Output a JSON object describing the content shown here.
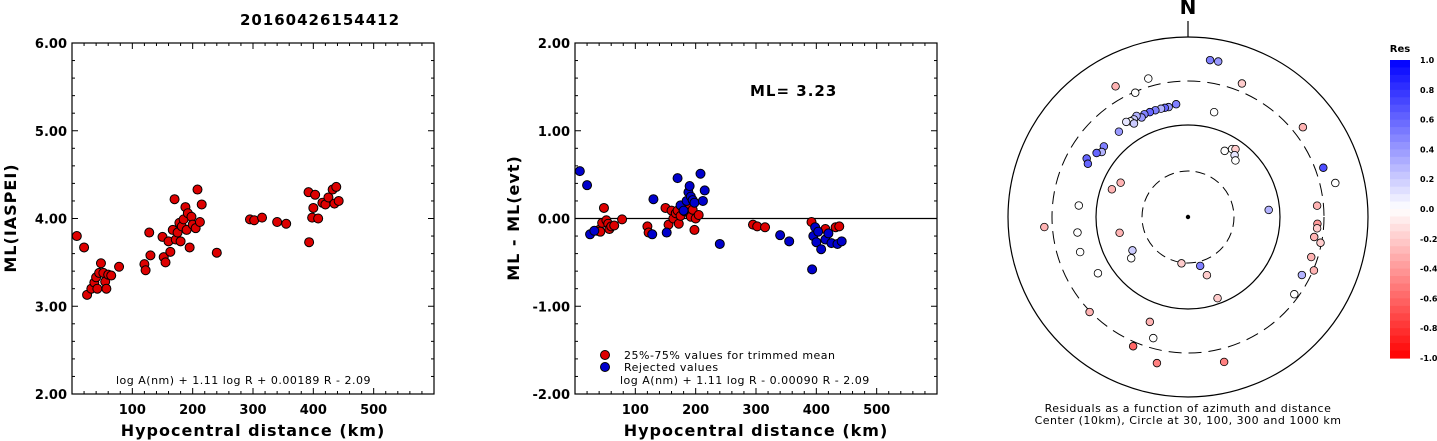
{
  "title": "20160426154412",
  "colors": {
    "accepted": "#dd0000",
    "rejected": "#0000cc",
    "outline": "#000000"
  },
  "chart_data": [
    {
      "id": "ml",
      "type": "scatter",
      "xlabel": "Hypocentral distance (km)",
      "ylabel": "ML(IASPEI)",
      "xlim": [
        0,
        600
      ],
      "ylim": [
        2.0,
        6.0
      ],
      "xticks": [
        "100",
        "200",
        "300",
        "400",
        "500"
      ],
      "yticks": [
        "2.00",
        "3.00",
        "4.00",
        "5.00",
        "6.00"
      ],
      "annotation": "log A(nm) + 1.11 log R + 0.00189 R - 2.09",
      "series": [
        {
          "color": "#dd0000",
          "points": [
            [
              8,
              3.8
            ],
            [
              20,
              3.67
            ],
            [
              25,
              3.13
            ],
            [
              32,
              3.2
            ],
            [
              37,
              3.27
            ],
            [
              40,
              3.33
            ],
            [
              42,
              3.2
            ],
            [
              45,
              3.38
            ],
            [
              48,
              3.49
            ],
            [
              52,
              3.38
            ],
            [
              55,
              3.28
            ],
            [
              57,
              3.2
            ],
            [
              60,
              3.36
            ],
            [
              65,
              3.35
            ],
            [
              78,
              3.45
            ],
            [
              120,
              3.48
            ],
            [
              122,
              3.41
            ],
            [
              128,
              3.84
            ],
            [
              130,
              3.58
            ],
            [
              150,
              3.79
            ],
            [
              152,
              3.56
            ],
            [
              155,
              3.5
            ],
            [
              160,
              3.74
            ],
            [
              163,
              3.62
            ],
            [
              167,
              3.87
            ],
            [
              170,
              4.22
            ],
            [
              172,
              3.76
            ],
            [
              175,
              3.84
            ],
            [
              178,
              3.95
            ],
            [
              180,
              3.74
            ],
            [
              182,
              3.91
            ],
            [
              185,
              3.99
            ],
            [
              188,
              4.13
            ],
            [
              190,
              3.87
            ],
            [
              192,
              4.06
            ],
            [
              195,
              3.67
            ],
            [
              198,
              4.02
            ],
            [
              200,
              3.93
            ],
            [
              205,
              3.89
            ],
            [
              208,
              4.33
            ],
            [
              212,
              3.96
            ],
            [
              215,
              4.16
            ],
            [
              240,
              3.61
            ],
            [
              295,
              3.99
            ],
            [
              302,
              3.98
            ],
            [
              315,
              4.01
            ],
            [
              340,
              3.96
            ],
            [
              355,
              3.94
            ],
            [
              392,
              4.3
            ],
            [
              393,
              3.73
            ],
            [
              398,
              4.01
            ],
            [
              400,
              4.12
            ],
            [
              403,
              4.27
            ],
            [
              408,
              4.0
            ],
            [
              415,
              4.18
            ],
            [
              420,
              4.16
            ],
            [
              425,
              4.24
            ],
            [
              432,
              4.33
            ],
            [
              435,
              4.17
            ],
            [
              438,
              4.36
            ],
            [
              442,
              4.2
            ]
          ]
        }
      ]
    },
    {
      "id": "residual",
      "type": "scatter",
      "xlabel": "Hypocentral distance (km)",
      "ylabel": "ML - ML(evt)",
      "xlim": [
        0,
        600
      ],
      "ylim": [
        -2.0,
        2.0
      ],
      "xticks": [
        "100",
        "200",
        "300",
        "400",
        "500"
      ],
      "yticks": [
        "-2.00",
        "-1.00",
        "0.00",
        "1.00",
        "2.00"
      ],
      "ml_text": "ML= 3.23",
      "annotation": "log A(nm) + 1.11 log R - 0.00090 R - 2.09",
      "legend": [
        "25%-75% values for trimmed mean",
        "Rejected values"
      ],
      "series": [
        {
          "color": "#dd0000",
          "points": [
            [
              37,
              -0.14
            ],
            [
              40,
              -0.13
            ],
            [
              42,
              -0.15
            ],
            [
              45,
              -0.05
            ],
            [
              48,
              0.12
            ],
            [
              52,
              -0.02
            ],
            [
              55,
              -0.06
            ],
            [
              57,
              -0.12
            ],
            [
              60,
              -0.09
            ],
            [
              65,
              -0.08
            ],
            [
              78,
              -0.01
            ],
            [
              120,
              -0.09
            ],
            [
              122,
              -0.16
            ],
            [
              150,
              0.12
            ],
            [
              155,
              -0.07
            ],
            [
              160,
              0.09
            ],
            [
              163,
              0.0
            ],
            [
              167,
              0.06
            ],
            [
              170,
              0.09
            ],
            [
              172,
              -0.06
            ],
            [
              175,
              0.03
            ],
            [
              178,
              0.13
            ],
            [
              180,
              0.11
            ],
            [
              182,
              0.08
            ],
            [
              185,
              0.11
            ],
            [
              188,
              0.07
            ],
            [
              190,
              0.16
            ],
            [
              192,
              0.02
            ],
            [
              195,
              0.1
            ],
            [
              198,
              -0.13
            ],
            [
              200,
              0.0
            ],
            [
              205,
              0.04
            ],
            [
              295,
              -0.07
            ],
            [
              302,
              -0.09
            ],
            [
              315,
              -0.1
            ],
            [
              392,
              -0.04
            ],
            [
              415,
              -0.12
            ],
            [
              432,
              -0.1
            ],
            [
              438,
              -0.09
            ]
          ]
        },
        {
          "color": "#0000cc",
          "points": [
            [
              8,
              0.54
            ],
            [
              20,
              0.38
            ],
            [
              25,
              -0.18
            ],
            [
              32,
              -0.14
            ],
            [
              128,
              -0.18
            ],
            [
              130,
              0.22
            ],
            [
              152,
              -0.16
            ],
            [
              170,
              0.46
            ],
            [
              175,
              0.15
            ],
            [
              180,
              0.09
            ],
            [
              185,
              0.2
            ],
            [
              188,
              0.3
            ],
            [
              190,
              0.37
            ],
            [
              192,
              0.25
            ],
            [
              195,
              0.21
            ],
            [
              198,
              0.18
            ],
            [
              208,
              0.51
            ],
            [
              212,
              0.2
            ],
            [
              215,
              0.32
            ],
            [
              240,
              -0.29
            ],
            [
              340,
              -0.19
            ],
            [
              355,
              -0.26
            ],
            [
              393,
              -0.58
            ],
            [
              395,
              -0.2
            ],
            [
              398,
              -0.1
            ],
            [
              400,
              -0.27
            ],
            [
              403,
              -0.15
            ],
            [
              408,
              -0.35
            ],
            [
              415,
              -0.24
            ],
            [
              420,
              -0.17
            ],
            [
              425,
              -0.28
            ],
            [
              435,
              -0.29
            ],
            [
              442,
              -0.26
            ]
          ]
        }
      ]
    },
    {
      "id": "azimuth",
      "type": "scatter",
      "north_label": "N",
      "caption_line1": "Residuals as a function of azimuth and distance",
      "caption_line2": "Center (10km), Circle at 30, 100, 300 and 1000 km",
      "stations_polar": [
        [
          8,
          0.88,
          0.5
        ],
        [
          11,
          0.88,
          0.4
        ],
        [
          22,
          0.8,
          -0.2
        ],
        [
          52,
          0.81,
          -0.3
        ],
        [
          70,
          0.8,
          0.7
        ],
        [
          77,
          0.84,
          0.0
        ],
        [
          85,
          0.45,
          0.3
        ],
        [
          29,
          0.42,
          0.0
        ],
        [
          33,
          0.45,
          0.0
        ],
        [
          35,
          0.46,
          -0.2
        ],
        [
          37,
          0.43,
          0.1
        ],
        [
          40,
          0.41,
          0.0
        ],
        [
          14,
          0.6,
          0.0
        ],
        [
          162,
          0.34,
          -0.2
        ],
        [
          354,
          0.63,
          0.5
        ],
        [
          350,
          0.62,
          0.4
        ],
        [
          348,
          0.62,
          0.6
        ],
        [
          346,
          0.62,
          0.3
        ],
        [
          343,
          0.62,
          0.5
        ],
        [
          340,
          0.62,
          0.6
        ],
        [
          337,
          0.62,
          0.5
        ],
        [
          335,
          0.61,
          0.4
        ],
        [
          333,
          0.63,
          0.3
        ],
        [
          331,
          0.62,
          0.2
        ],
        [
          329,
          0.62,
          0.0
        ],
        [
          327,
          0.63,
          0.1
        ],
        [
          330,
          0.6,
          0.2
        ],
        [
          321,
          0.61,
          0.4
        ],
        [
          310,
          0.61,
          0.5
        ],
        [
          307,
          0.6,
          0.3
        ],
        [
          305,
          0.62,
          0.6
        ],
        [
          300,
          0.65,
          0.6
        ],
        [
          298,
          0.63,
          0.6
        ],
        [
          331,
          0.83,
          -0.3
        ],
        [
          337,
          0.75,
          0.0
        ],
        [
          344,
          0.8,
          0.0
        ],
        [
          276,
          0.61,
          0.0
        ],
        [
          290,
          0.45,
          -0.3
        ],
        [
          297,
          0.42,
          -0.3
        ],
        [
          262,
          0.62,
          0.0
        ],
        [
          252,
          0.63,
          0.0
        ],
        [
          238,
          0.59,
          0.0
        ],
        [
          266,
          0.8,
          -0.3
        ],
        [
          85,
          0.72,
          -0.3
        ],
        [
          93,
          0.72,
          -0.4
        ],
        [
          95,
          0.72,
          -0.2
        ],
        [
          99,
          0.71,
          -0.3
        ],
        [
          101,
          0.75,
          -0.2
        ],
        [
          108,
          0.72,
          -0.3
        ],
        [
          113,
          0.76,
          -0.3
        ],
        [
          117,
          0.71,
          0.3
        ],
        [
          126,
          0.73,
          0.0
        ],
        [
          200,
          0.62,
          -0.3
        ],
        [
          203,
          0.78,
          -0.6
        ],
        [
          196,
          0.7,
          0.0
        ],
        [
          192,
          0.83,
          -0.5
        ],
        [
          166,
          0.83,
          -0.5
        ],
        [
          226,
          0.76,
          -0.3
        ],
        [
          257,
          0.39,
          -0.3
        ],
        [
          234,
          0.39,
          0.0
        ],
        [
          239,
          0.36,
          0.2
        ],
        [
          188,
          0.26,
          -0.2
        ],
        [
          166,
          0.28,
          0.5
        ],
        [
          160,
          0.48,
          -0.2
        ]
      ],
      "colorbar": {
        "title": "Res",
        "labels": [
          "1.0",
          "0.8",
          "0.6",
          "0.4",
          "0.2",
          "0.0",
          "-0.2",
          "-0.4",
          "-0.6",
          "-0.8",
          "-1.0"
        ]
      }
    }
  ]
}
